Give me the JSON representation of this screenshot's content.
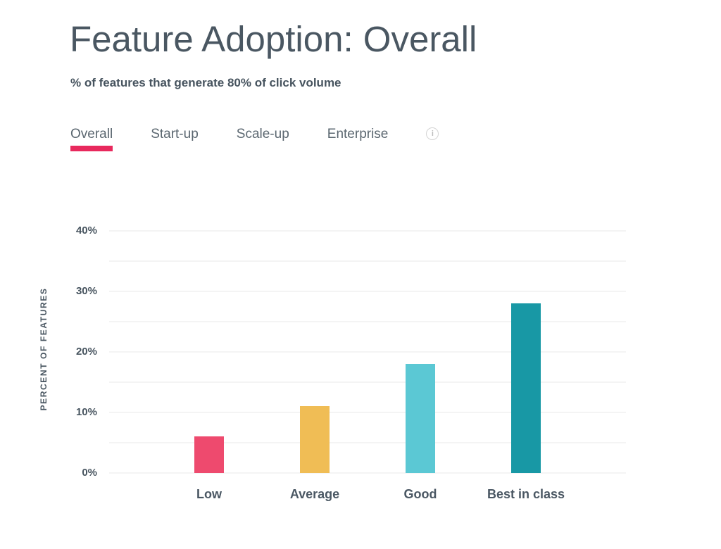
{
  "page": {
    "title": "Feature Adoption: Overall",
    "subtitle": "% of features that generate 80% of click volume"
  },
  "tabs": {
    "items": [
      {
        "label": "Overall",
        "active": true
      },
      {
        "label": "Start-up",
        "active": false
      },
      {
        "label": "Scale-up",
        "active": false
      },
      {
        "label": "Enterprise",
        "active": false
      }
    ],
    "info_icon_glyph": "i"
  },
  "chart_data": {
    "type": "bar",
    "title": "Feature Adoption: Overall",
    "subtitle": "% of features that generate 80% of click volume",
    "categories": [
      "Low",
      "Average",
      "Good",
      "Best in class"
    ],
    "values": [
      6,
      11,
      18,
      28
    ],
    "bar_colors": [
      "#ee4a6e",
      "#f0bd55",
      "#5bc8d4",
      "#1898a5"
    ],
    "xlabel": "",
    "ylabel": "PERCENT OF FEATURES",
    "ylim": [
      0,
      40
    ],
    "ytick_step": 10,
    "ytick_suffix": "%",
    "grid_step": 5,
    "grid": true,
    "legend": false
  },
  "colors": {
    "accent_pink": "#e8295d",
    "title_text": "#4a5762",
    "body_text": "#47545f",
    "tab_text": "#5b6770",
    "gridline": "#f4f4f4",
    "info_icon": "#bdbdbd"
  }
}
